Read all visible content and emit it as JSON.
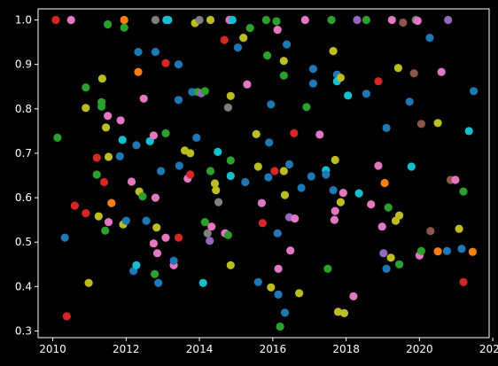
{
  "chart_data": {
    "type": "scatter",
    "title": "",
    "xlabel": "",
    "ylabel": "",
    "xlim": [
      2009.6,
      2021.9
    ],
    "ylim": [
      0.285,
      1.025
    ],
    "grid": false,
    "background": "#000000",
    "foreground": "#ffffff",
    "x_ticks": [
      2010,
      2012,
      2014,
      2016,
      2018,
      2020,
      2022
    ],
    "y_ticks": [
      0.3,
      0.4,
      0.5,
      0.6,
      0.7,
      0.8,
      0.9,
      1.0
    ],
    "x_tick_labels": [
      "2010",
      "2012",
      "2014",
      "2016",
      "2018",
      "2020",
      "2022"
    ],
    "y_tick_labels": [
      "0.3",
      "0.4",
      "0.5",
      "0.6",
      "0.7",
      "0.8",
      "0.9",
      "1.0"
    ],
    "colors": {
      "blue": "#1f77b4",
      "orange": "#ff7f0e",
      "green": "#2ca02c",
      "red": "#d62728",
      "purple": "#9467bd",
      "brown": "#8c564b",
      "pink": "#e377c2",
      "gray": "#7f7f7f",
      "olive": "#bcbd22",
      "cyan": "#17becf"
    },
    "points": [
      {
        "x": 2010.08,
        "y": 1.0,
        "c": "red"
      },
      {
        "x": 2010.5,
        "y": 1.0,
        "c": "pink"
      },
      {
        "x": 2010.13,
        "y": 0.735,
        "c": "green"
      },
      {
        "x": 2010.33,
        "y": 0.51,
        "c": "blue"
      },
      {
        "x": 2010.38,
        "y": 0.333,
        "c": "red"
      },
      {
        "x": 2010.6,
        "y": 0.582,
        "c": "red"
      },
      {
        "x": 2010.9,
        "y": 0.848,
        "c": "green"
      },
      {
        "x": 2010.9,
        "y": 0.802,
        "c": "olive"
      },
      {
        "x": 2010.9,
        "y": 0.565,
        "c": "red"
      },
      {
        "x": 2010.98,
        "y": 0.408,
        "c": "olive"
      },
      {
        "x": 2011.2,
        "y": 0.69,
        "c": "red"
      },
      {
        "x": 2011.2,
        "y": 0.652,
        "c": "green"
      },
      {
        "x": 2011.25,
        "y": 0.558,
        "c": "olive"
      },
      {
        "x": 2011.33,
        "y": 0.815,
        "c": "green"
      },
      {
        "x": 2011.33,
        "y": 0.805,
        "c": "green"
      },
      {
        "x": 2011.35,
        "y": 0.868,
        "c": "olive"
      },
      {
        "x": 2011.4,
        "y": 0.635,
        "c": "red"
      },
      {
        "x": 2011.43,
        "y": 0.526,
        "c": "green"
      },
      {
        "x": 2011.45,
        "y": 0.758,
        "c": "olive"
      },
      {
        "x": 2011.5,
        "y": 0.99,
        "c": "green"
      },
      {
        "x": 2011.5,
        "y": 0.784,
        "c": "pink"
      },
      {
        "x": 2011.52,
        "y": 0.692,
        "c": "olive"
      },
      {
        "x": 2011.52,
        "y": 0.545,
        "c": "pink"
      },
      {
        "x": 2011.6,
        "y": 0.588,
        "c": "orange"
      },
      {
        "x": 2011.83,
        "y": 0.693,
        "c": "blue"
      },
      {
        "x": 2011.85,
        "y": 0.774,
        "c": "pink"
      },
      {
        "x": 2011.9,
        "y": 0.73,
        "c": "cyan"
      },
      {
        "x": 2011.92,
        "y": 0.54,
        "c": "olive"
      },
      {
        "x": 2011.95,
        "y": 1.0,
        "c": "orange"
      },
      {
        "x": 2011.95,
        "y": 0.983,
        "c": "green"
      },
      {
        "x": 2012.0,
        "y": 0.548,
        "c": "blue"
      },
      {
        "x": 2012.15,
        "y": 0.636,
        "c": "pink"
      },
      {
        "x": 2012.2,
        "y": 0.435,
        "c": "blue"
      },
      {
        "x": 2012.28,
        "y": 0.448,
        "c": "cyan"
      },
      {
        "x": 2012.28,
        "y": 0.718,
        "c": "blue"
      },
      {
        "x": 2012.33,
        "y": 0.928,
        "c": "blue"
      },
      {
        "x": 2012.33,
        "y": 0.883,
        "c": "orange"
      },
      {
        "x": 2012.36,
        "y": 0.614,
        "c": "olive"
      },
      {
        "x": 2012.45,
        "y": 0.603,
        "c": "green"
      },
      {
        "x": 2012.48,
        "y": 0.823,
        "c": "pink"
      },
      {
        "x": 2012.55,
        "y": 0.548,
        "c": "blue"
      },
      {
        "x": 2012.65,
        "y": 0.727,
        "c": "cyan"
      },
      {
        "x": 2012.75,
        "y": 0.497,
        "c": "pink"
      },
      {
        "x": 2012.75,
        "y": 0.74,
        "c": "pink"
      },
      {
        "x": 2012.78,
        "y": 0.428,
        "c": "green"
      },
      {
        "x": 2012.8,
        "y": 1.0,
        "c": "gray"
      },
      {
        "x": 2012.8,
        "y": 0.928,
        "c": "blue"
      },
      {
        "x": 2012.8,
        "y": 0.6,
        "c": "pink"
      },
      {
        "x": 2012.83,
        "y": 0.533,
        "c": "olive"
      },
      {
        "x": 2012.85,
        "y": 0.475,
        "c": "pink"
      },
      {
        "x": 2012.88,
        "y": 0.408,
        "c": "blue"
      },
      {
        "x": 2012.95,
        "y": 0.66,
        "c": "blue"
      },
      {
        "x": 2013.1,
        "y": 1.0,
        "c": "cyan"
      },
      {
        "x": 2013.15,
        "y": 1.0,
        "c": "cyan"
      },
      {
        "x": 2013.08,
        "y": 0.903,
        "c": "red"
      },
      {
        "x": 2013.08,
        "y": 0.745,
        "c": "green"
      },
      {
        "x": 2013.08,
        "y": 0.51,
        "c": "pink"
      },
      {
        "x": 2013.3,
        "y": 0.448,
        "c": "pink"
      },
      {
        "x": 2013.3,
        "y": 0.458,
        "c": "blue"
      },
      {
        "x": 2013.43,
        "y": 0.9,
        "c": "blue"
      },
      {
        "x": 2013.43,
        "y": 0.82,
        "c": "blue"
      },
      {
        "x": 2013.43,
        "y": 0.51,
        "c": "red"
      },
      {
        "x": 2013.45,
        "y": 0.672,
        "c": "blue"
      },
      {
        "x": 2013.6,
        "y": 0.706,
        "c": "olive"
      },
      {
        "x": 2013.68,
        "y": 0.643,
        "c": "pink"
      },
      {
        "x": 2013.75,
        "y": 0.652,
        "c": "red"
      },
      {
        "x": 2013.75,
        "y": 0.7,
        "c": "olive"
      },
      {
        "x": 2013.8,
        "y": 0.838,
        "c": "blue"
      },
      {
        "x": 2013.88,
        "y": 0.993,
        "c": "olive"
      },
      {
        "x": 2013.92,
        "y": 0.735,
        "c": "blue"
      },
      {
        "x": 2013.95,
        "y": 0.838,
        "c": "green"
      },
      {
        "x": 2014.0,
        "y": 1.0,
        "c": "gray"
      },
      {
        "x": 2014.05,
        "y": 0.835,
        "c": "purple"
      },
      {
        "x": 2014.1,
        "y": 0.408,
        "c": "cyan"
      },
      {
        "x": 2014.15,
        "y": 0.84,
        "c": "green"
      },
      {
        "x": 2014.15,
        "y": 0.545,
        "c": "green"
      },
      {
        "x": 2014.22,
        "y": 0.52,
        "c": "gray"
      },
      {
        "x": 2014.28,
        "y": 0.503,
        "c": "purple"
      },
      {
        "x": 2014.3,
        "y": 1.0,
        "c": "olive"
      },
      {
        "x": 2014.3,
        "y": 0.66,
        "c": "green"
      },
      {
        "x": 2014.33,
        "y": 0.535,
        "c": "pink"
      },
      {
        "x": 2014.42,
        "y": 0.632,
        "c": "olive"
      },
      {
        "x": 2014.45,
        "y": 0.617,
        "c": "olive"
      },
      {
        "x": 2014.5,
        "y": 0.703,
        "c": "cyan"
      },
      {
        "x": 2014.52,
        "y": 0.59,
        "c": "gray"
      },
      {
        "x": 2014.68,
        "y": 0.955,
        "c": "red"
      },
      {
        "x": 2014.7,
        "y": 0.52,
        "c": "pink"
      },
      {
        "x": 2014.78,
        "y": 0.803,
        "c": "gray"
      },
      {
        "x": 2014.78,
        "y": 0.516,
        "c": "green"
      },
      {
        "x": 2014.82,
        "y": 1.0,
        "c": "pink"
      },
      {
        "x": 2014.85,
        "y": 0.829,
        "c": "olive"
      },
      {
        "x": 2014.85,
        "y": 0.684,
        "c": "green"
      },
      {
        "x": 2014.85,
        "y": 0.649,
        "c": "cyan"
      },
      {
        "x": 2014.85,
        "y": 0.448,
        "c": "olive"
      },
      {
        "x": 2014.9,
        "y": 1.0,
        "c": "cyan"
      },
      {
        "x": 2015.05,
        "y": 0.938,
        "c": "blue"
      },
      {
        "x": 2015.2,
        "y": 0.96,
        "c": "olive"
      },
      {
        "x": 2015.25,
        "y": 0.635,
        "c": "blue"
      },
      {
        "x": 2015.3,
        "y": 0.855,
        "c": "pink"
      },
      {
        "x": 2015.38,
        "y": 0.982,
        "c": "green"
      },
      {
        "x": 2015.55,
        "y": 0.743,
        "c": "olive"
      },
      {
        "x": 2015.6,
        "y": 0.67,
        "c": "olive"
      },
      {
        "x": 2015.6,
        "y": 0.41,
        "c": "blue"
      },
      {
        "x": 2015.7,
        "y": 0.588,
        "c": "pink"
      },
      {
        "x": 2015.72,
        "y": 0.543,
        "c": "red"
      },
      {
        "x": 2015.82,
        "y": 1.0,
        "c": "green"
      },
      {
        "x": 2015.85,
        "y": 0.92,
        "c": "green"
      },
      {
        "x": 2015.88,
        "y": 0.646,
        "c": "blue"
      },
      {
        "x": 2015.9,
        "y": 0.724,
        "c": "blue"
      },
      {
        "x": 2015.95,
        "y": 0.81,
        "c": "blue"
      },
      {
        "x": 2015.95,
        "y": 0.398,
        "c": "olive"
      },
      {
        "x": 2016.05,
        "y": 0.66,
        "c": "red"
      },
      {
        "x": 2016.1,
        "y": 0.997,
        "c": "green"
      },
      {
        "x": 2016.13,
        "y": 0.978,
        "c": "pink"
      },
      {
        "x": 2016.13,
        "y": 0.52,
        "c": "blue"
      },
      {
        "x": 2016.15,
        "y": 0.44,
        "c": "pink"
      },
      {
        "x": 2016.15,
        "y": 0.382,
        "c": "blue"
      },
      {
        "x": 2016.2,
        "y": 0.31,
        "c": "green"
      },
      {
        "x": 2016.3,
        "y": 0.908,
        "c": "olive"
      },
      {
        "x": 2016.3,
        "y": 0.875,
        "c": "green"
      },
      {
        "x": 2016.3,
        "y": 0.66,
        "c": "olive"
      },
      {
        "x": 2016.33,
        "y": 0.606,
        "c": "olive"
      },
      {
        "x": 2016.33,
        "y": 0.341,
        "c": "blue"
      },
      {
        "x": 2016.38,
        "y": 0.945,
        "c": "blue"
      },
      {
        "x": 2016.45,
        "y": 0.675,
        "c": "blue"
      },
      {
        "x": 2016.45,
        "y": 0.556,
        "c": "purple"
      },
      {
        "x": 2016.48,
        "y": 0.481,
        "c": "pink"
      },
      {
        "x": 2016.58,
        "y": 0.745,
        "c": "red"
      },
      {
        "x": 2016.6,
        "y": 0.553,
        "c": "pink"
      },
      {
        "x": 2016.72,
        "y": 0.385,
        "c": "olive"
      },
      {
        "x": 2016.78,
        "y": 0.622,
        "c": "blue"
      },
      {
        "x": 2016.88,
        "y": 1.0,
        "c": "pink"
      },
      {
        "x": 2016.92,
        "y": 0.804,
        "c": "green"
      },
      {
        "x": 2017.05,
        "y": 0.648,
        "c": "blue"
      },
      {
        "x": 2017.1,
        "y": 0.89,
        "c": "blue"
      },
      {
        "x": 2017.1,
        "y": 0.857,
        "c": "blue"
      },
      {
        "x": 2017.28,
        "y": 0.742,
        "c": "pink"
      },
      {
        "x": 2017.45,
        "y": 0.662,
        "c": "cyan"
      },
      {
        "x": 2017.45,
        "y": 0.652,
        "c": "blue"
      },
      {
        "x": 2017.5,
        "y": 0.44,
        "c": "green"
      },
      {
        "x": 2017.6,
        "y": 1.0,
        "c": "green"
      },
      {
        "x": 2017.65,
        "y": 0.93,
        "c": "olive"
      },
      {
        "x": 2017.65,
        "y": 0.617,
        "c": "blue"
      },
      {
        "x": 2017.68,
        "y": 0.55,
        "c": "pink"
      },
      {
        "x": 2017.7,
        "y": 0.685,
        "c": "olive"
      },
      {
        "x": 2017.7,
        "y": 0.57,
        "c": "pink"
      },
      {
        "x": 2017.75,
        "y": 0.877,
        "c": "blue"
      },
      {
        "x": 2017.75,
        "y": 0.862,
        "c": "cyan"
      },
      {
        "x": 2017.78,
        "y": 0.343,
        "c": "olive"
      },
      {
        "x": 2017.85,
        "y": 0.87,
        "c": "olive"
      },
      {
        "x": 2017.85,
        "y": 0.59,
        "c": "olive"
      },
      {
        "x": 2017.92,
        "y": 0.611,
        "c": "pink"
      },
      {
        "x": 2017.95,
        "y": 0.34,
        "c": "olive"
      },
      {
        "x": 2018.05,
        "y": 0.83,
        "c": "cyan"
      },
      {
        "x": 2018.2,
        "y": 0.378,
        "c": "pink"
      },
      {
        "x": 2018.3,
        "y": 1.0,
        "c": "purple"
      },
      {
        "x": 2018.35,
        "y": 0.61,
        "c": "cyan"
      },
      {
        "x": 2018.55,
        "y": 1.0,
        "c": "green"
      },
      {
        "x": 2018.55,
        "y": 0.834,
        "c": "blue"
      },
      {
        "x": 2018.68,
        "y": 0.585,
        "c": "pink"
      },
      {
        "x": 2018.88,
        "y": 0.862,
        "c": "red"
      },
      {
        "x": 2018.88,
        "y": 0.672,
        "c": "pink"
      },
      {
        "x": 2018.98,
        "y": 0.535,
        "c": "pink"
      },
      {
        "x": 2019.02,
        "y": 0.475,
        "c": "purple"
      },
      {
        "x": 2019.05,
        "y": 0.633,
        "c": "orange"
      },
      {
        "x": 2019.1,
        "y": 0.757,
        "c": "blue"
      },
      {
        "x": 2019.1,
        "y": 0.44,
        "c": "blue"
      },
      {
        "x": 2019.15,
        "y": 0.578,
        "c": "green"
      },
      {
        "x": 2019.22,
        "y": 0.465,
        "c": "olive"
      },
      {
        "x": 2019.25,
        "y": 1.0,
        "c": "pink"
      },
      {
        "x": 2019.35,
        "y": 0.548,
        "c": "olive"
      },
      {
        "x": 2019.42,
        "y": 0.892,
        "c": "olive"
      },
      {
        "x": 2019.45,
        "y": 0.56,
        "c": "olive"
      },
      {
        "x": 2019.45,
        "y": 0.45,
        "c": "green"
      },
      {
        "x": 2019.55,
        "y": 0.994,
        "c": "brown"
      },
      {
        "x": 2019.73,
        "y": 0.816,
        "c": "blue"
      },
      {
        "x": 2019.78,
        "y": 0.67,
        "c": "cyan"
      },
      {
        "x": 2019.85,
        "y": 0.88,
        "c": "brown"
      },
      {
        "x": 2019.9,
        "y": 1.0,
        "c": "gray"
      },
      {
        "x": 2019.95,
        "y": 0.998,
        "c": "pink"
      },
      {
        "x": 2020.0,
        "y": 0.47,
        "c": "pink"
      },
      {
        "x": 2020.05,
        "y": 0.766,
        "c": "brown"
      },
      {
        "x": 2020.05,
        "y": 0.48,
        "c": "green"
      },
      {
        "x": 2020.28,
        "y": 0.96,
        "c": "blue"
      },
      {
        "x": 2020.3,
        "y": 0.525,
        "c": "brown"
      },
      {
        "x": 2020.5,
        "y": 0.768,
        "c": "olive"
      },
      {
        "x": 2020.5,
        "y": 0.479,
        "c": "orange"
      },
      {
        "x": 2020.6,
        "y": 0.883,
        "c": "pink"
      },
      {
        "x": 2020.75,
        "y": 0.48,
        "c": "blue"
      },
      {
        "x": 2020.78,
        "y": 1.0,
        "c": "purple"
      },
      {
        "x": 2020.85,
        "y": 0.64,
        "c": "brown"
      },
      {
        "x": 2020.98,
        "y": 0.64,
        "c": "pink"
      },
      {
        "x": 2021.08,
        "y": 0.53,
        "c": "olive"
      },
      {
        "x": 2021.15,
        "y": 0.485,
        "c": "blue"
      },
      {
        "x": 2021.2,
        "y": 0.614,
        "c": "green"
      },
      {
        "x": 2021.2,
        "y": 0.41,
        "c": "red"
      },
      {
        "x": 2021.35,
        "y": 0.75,
        "c": "cyan"
      },
      {
        "x": 2021.45,
        "y": 0.478,
        "c": "orange"
      },
      {
        "x": 2021.48,
        "y": 0.84,
        "c": "blue"
      }
    ]
  }
}
